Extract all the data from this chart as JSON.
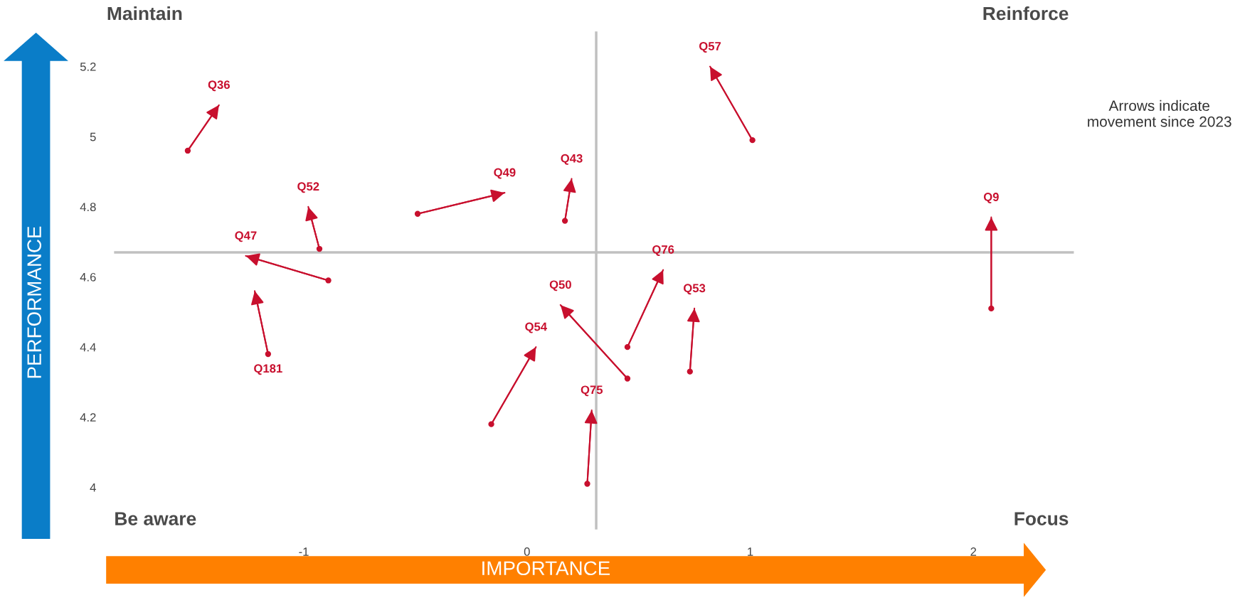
{
  "chart_data": {
    "type": "line",
    "xlabel": "IMPORTANCE",
    "ylabel": "PERFORMANCE",
    "xlim": [
      -1.85,
      2.45
    ],
    "ylim": [
      3.88,
      5.3
    ],
    "xticks": [
      -1,
      0,
      1,
      2
    ],
    "yticks": [
      4,
      4.2,
      4.4,
      4.6,
      4.8,
      5,
      5.2
    ],
    "grid": false,
    "legend": false,
    "marker": "circle",
    "line_style": "solid",
    "ref_lines": [
      {
        "axis": "x",
        "value": 0.31,
        "color": "#c0c0c0"
      },
      {
        "axis": "y",
        "value": 4.67,
        "color": "#c0c0c0"
      }
    ],
    "annotations": [
      "Maintain",
      "Reinforce",
      "Be aware",
      "Focus",
      "Arrows indicate movement since 2023"
    ],
    "series": [
      {
        "name": "Q36",
        "color": "#c8102e",
        "x": [
          -1.52,
          -1.38
        ],
        "values": [
          4.96,
          5.09
        ]
      },
      {
        "name": "Q52",
        "color": "#c8102e",
        "x": [
          -0.93,
          -0.98
        ],
        "values": [
          4.68,
          4.8
        ]
      },
      {
        "name": "Q47",
        "color": "#c8102e",
        "x": [
          -0.89,
          -1.26
        ],
        "values": [
          4.59,
          4.66
        ]
      },
      {
        "name": "Q181",
        "color": "#c8102e",
        "x": [
          -1.16,
          -1.22
        ],
        "values": [
          4.38,
          4.56
        ]
      },
      {
        "name": "Q49",
        "color": "#c8102e",
        "x": [
          -0.49,
          -0.1
        ],
        "values": [
          4.78,
          4.84
        ]
      },
      {
        "name": "Q43",
        "color": "#c8102e",
        "x": [
          0.17,
          0.2
        ],
        "values": [
          4.76,
          4.88
        ]
      },
      {
        "name": "Q57",
        "color": "#c8102e",
        "x": [
          1.01,
          0.82
        ],
        "values": [
          4.99,
          5.2
        ]
      },
      {
        "name": "Q9",
        "color": "#c8102e",
        "x": [
          2.08,
          2.08
        ],
        "values": [
          4.51,
          4.77
        ]
      },
      {
        "name": "Q76",
        "color": "#c8102e",
        "x": [
          0.45,
          0.61
        ],
        "values": [
          4.4,
          4.62
        ]
      },
      {
        "name": "Q53",
        "color": "#c8102e",
        "x": [
          0.73,
          0.75
        ],
        "values": [
          4.33,
          4.51
        ]
      },
      {
        "name": "Q50",
        "color": "#c8102e",
        "x": [
          0.45,
          0.15
        ],
        "values": [
          4.31,
          4.52
        ]
      },
      {
        "name": "Q54",
        "color": "#c8102e",
        "x": [
          -0.16,
          0.04
        ],
        "values": [
          4.18,
          4.4
        ]
      },
      {
        "name": "Q75",
        "color": "#c8102e",
        "x": [
          0.27,
          0.29
        ],
        "values": [
          4.01,
          4.22
        ]
      }
    ]
  }
}
